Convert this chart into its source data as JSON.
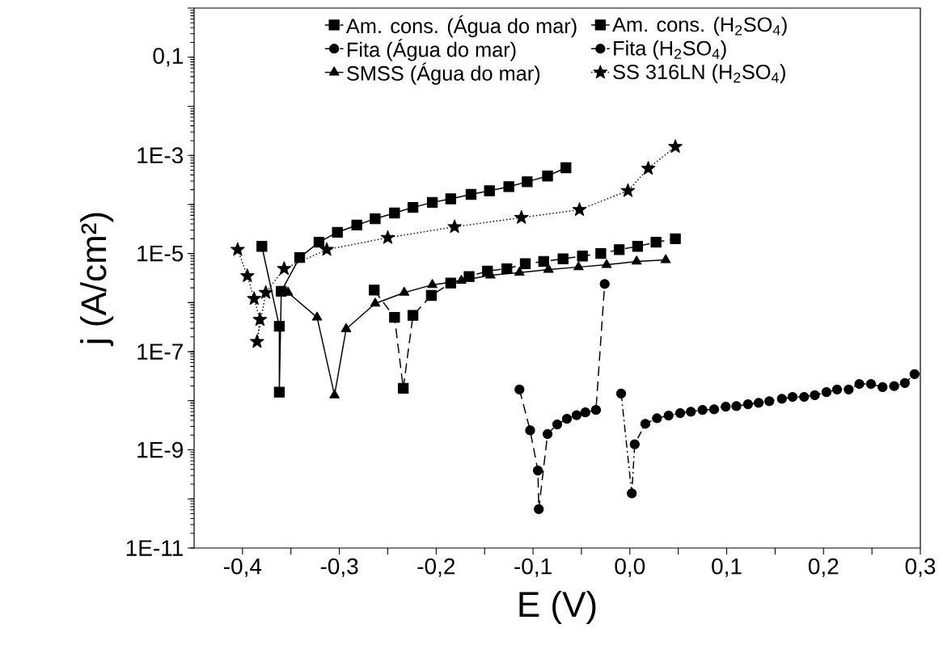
{
  "chart_data": {
    "type": "line",
    "xlabel": "E (V)",
    "ylabel": "j (A/cm²)",
    "log": "y",
    "legend": "top",
    "xlim": [
      -0.45,
      0.3
    ],
    "ylim": [
      1e-11,
      1
    ],
    "xticks": [
      {
        "value": -0.4,
        "label": "-0,4"
      },
      {
        "value": -0.35,
        "label": null
      },
      {
        "value": -0.3,
        "label": "-0,3"
      },
      {
        "value": -0.25,
        "label": null
      },
      {
        "value": -0.2,
        "label": "-0,2"
      },
      {
        "value": -0.15,
        "label": null
      },
      {
        "value": -0.1,
        "label": "-0,1"
      },
      {
        "value": -0.05,
        "label": null
      },
      {
        "value": 0.0,
        "label": "0,0"
      },
      {
        "value": 0.05,
        "label": null
      },
      {
        "value": 0.1,
        "label": "0,1"
      },
      {
        "value": 0.15,
        "label": null
      },
      {
        "value": 0.2,
        "label": "0,2"
      },
      {
        "value": 0.25,
        "label": null
      },
      {
        "value": 0.3,
        "label": "0,3"
      }
    ],
    "yticks": [
      {
        "value": 1e-11,
        "label": "1E-11"
      },
      {
        "value": 1e-10,
        "label": null
      },
      {
        "value": 1e-09,
        "label": "1E-9"
      },
      {
        "value": 1e-08,
        "label": null
      },
      {
        "value": 1e-07,
        "label": "1E-7"
      },
      {
        "value": 1e-06,
        "label": null
      },
      {
        "value": 1e-05,
        "label": "1E-5"
      },
      {
        "value": 0.0001,
        "label": null
      },
      {
        "value": 0.001,
        "label": "1E-3"
      },
      {
        "value": 0.01,
        "label": null
      },
      {
        "value": 0.1,
        "label": "0,1"
      },
      {
        "value": 1,
        "label": null
      }
    ],
    "series": [
      {
        "name": "Am. cons. (Água do mar)",
        "color": "#000000",
        "marker": "square",
        "line_style": "dashed",
        "x": [
          -0.264,
          -0.243,
          -0.234,
          -0.224,
          -0.205,
          -0.185,
          -0.166,
          -0.147,
          -0.127,
          -0.108,
          -0.089,
          -0.069,
          -0.049,
          -0.03,
          -0.011,
          0.008,
          0.027,
          0.047
        ],
        "values": [
          1.8e-06,
          5e-07,
          1.8e-08,
          5.5e-07,
          1.4e-06,
          2.5e-06,
          3.4e-06,
          4.4e-06,
          4.9e-06,
          6.2e-06,
          6.9e-06,
          7.8e-06,
          8.9e-06,
          1e-05,
          1.2e-05,
          1.4e-05,
          1.7e-05,
          2e-05
        ]
      },
      {
        "name": "Am. cons. (H$_{2}$SO$_{4}$)",
        "color": "#000000",
        "marker": "square",
        "line_style": "solid",
        "x": [
          -0.38,
          -0.362,
          -0.362,
          -0.36,
          -0.341,
          -0.321,
          -0.302,
          -0.282,
          -0.263,
          -0.243,
          -0.224,
          -0.204,
          -0.185,
          -0.164,
          -0.145,
          -0.125,
          -0.106,
          -0.085,
          -0.066
        ],
        "values": [
          1.4e-05,
          3.3e-07,
          1.5e-08,
          1.7e-06,
          8.3e-06,
          1.7e-05,
          2.7e-05,
          3.8e-05,
          5.1e-05,
          6.7e-05,
          8.7e-05,
          0.00011,
          0.00013,
          0.00016,
          0.00019,
          0.00023,
          0.00029,
          0.00038,
          0.00056
        ]
      },
      {
        "name": "Fita (Água do mar)",
        "color": "#000000",
        "marker": "circle",
        "line_style": "dashed",
        "x": [
          -0.114,
          -0.103,
          -0.095,
          -0.094,
          -0.085,
          -0.075,
          -0.065,
          -0.055,
          -0.046,
          -0.035,
          -0.026
        ],
        "values": [
          1.7e-08,
          2.5e-09,
          3.8e-10,
          6.2e-11,
          2.1e-09,
          3.3e-09,
          4.3e-09,
          5.1e-09,
          5.8e-09,
          6.5e-09,
          2.4e-06
        ]
      },
      {
        "name": "Fita (H$_{2}$SO$_{4}$)",
        "color": "#000000",
        "marker": "circle",
        "line_style": "dashdot",
        "x": [
          -0.009,
          0.002,
          0.005,
          0.016,
          0.028,
          0.04,
          0.052,
          0.063,
          0.075,
          0.087,
          0.099,
          0.11,
          0.122,
          0.133,
          0.144,
          0.157,
          0.168,
          0.18,
          0.191,
          0.203,
          0.214,
          0.226,
          0.237,
          0.249,
          0.261,
          0.273,
          0.284,
          0.294
        ],
        "values": [
          1.4e-08,
          1.3e-10,
          1.3e-09,
          3.4e-09,
          4.4e-09,
          5e-09,
          5.6e-09,
          6e-09,
          6.5e-09,
          6.7e-09,
          7.6e-09,
          7.8e-09,
          8.5e-09,
          9.1e-09,
          9.8e-09,
          1.1e-08,
          1.2e-08,
          1.2e-08,
          1.3e-08,
          1.5e-08,
          1.7e-08,
          1.7e-08,
          2.2e-08,
          2.2e-08,
          1.9e-08,
          2e-08,
          2.3e-08,
          3.5e-08
        ]
      },
      {
        "name": "SMSS (Água do mar)",
        "color": "#000000",
        "marker": "triangle",
        "line_style": "solid",
        "x": [
          -0.353,
          -0.323,
          -0.305,
          -0.293,
          -0.263,
          -0.233,
          -0.204,
          -0.174,
          -0.144,
          -0.114,
          -0.084,
          -0.053,
          -0.024,
          0.007,
          0.037
        ],
        "values": [
          1.6e-06,
          5e-07,
          1.3e-08,
          2.9e-07,
          9.6e-07,
          1.6e-06,
          2.3e-06,
          2.8e-06,
          3.6e-06,
          4.1e-06,
          4.7e-06,
          5.3e-06,
          5.9e-06,
          6.9e-06,
          7.4e-06
        ]
      },
      {
        "name": "SS 316LN (H$_{2}$SO$_{4}$)",
        "color": "#000000",
        "marker": "star",
        "line_style": "dotted",
        "x": [
          -0.405,
          -0.395,
          -0.388,
          -0.382,
          -0.385,
          -0.376,
          -0.357,
          -0.313,
          -0.25,
          -0.181,
          -0.112,
          -0.052,
          -0.002,
          0.019,
          0.047
        ],
        "values": [
          1.2e-05,
          3.5e-06,
          1.2e-06,
          4.5e-07,
          1.6e-07,
          1.6e-06,
          4.9e-06,
          1.2e-05,
          2.1e-05,
          3.5e-05,
          5.4e-05,
          7.8e-05,
          0.00019,
          0.00054,
          0.0015
        ]
      }
    ]
  }
}
